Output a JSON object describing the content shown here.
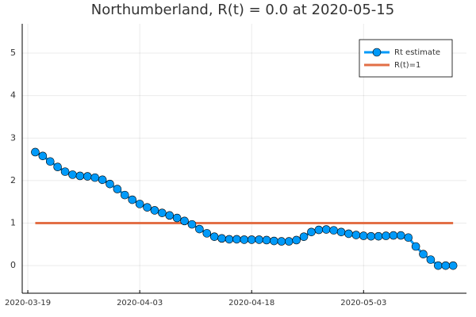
{
  "chart_data": {
    "type": "line",
    "title": "Northumberland, R(t) = 0.0 at 2020-05-15",
    "xlim": [
      "2020-03-18T06:00",
      "2020-05-16T19:00"
    ],
    "xticks": [
      "2020-03-19",
      "2020-04-03",
      "2020-04-18",
      "2020-05-03"
    ],
    "ylim": [
      -0.65,
      5.69
    ],
    "yticks": [
      0,
      1,
      2,
      3,
      4,
      5
    ],
    "grid": true,
    "legend": "top-right",
    "series": [
      {
        "name": "Rt estimate",
        "color": "#009af9",
        "markers": true,
        "x": [
          "2020-03-20",
          "2020-03-21",
          "2020-03-22",
          "2020-03-23",
          "2020-03-24",
          "2020-03-25",
          "2020-03-26",
          "2020-03-27",
          "2020-03-28",
          "2020-03-29",
          "2020-03-30",
          "2020-03-31",
          "2020-04-01",
          "2020-04-02",
          "2020-04-03",
          "2020-04-04",
          "2020-04-05",
          "2020-04-06",
          "2020-04-07",
          "2020-04-08",
          "2020-04-09",
          "2020-04-10",
          "2020-04-11",
          "2020-04-12",
          "2020-04-13",
          "2020-04-14",
          "2020-04-15",
          "2020-04-16",
          "2020-04-17",
          "2020-04-18",
          "2020-04-19",
          "2020-04-20",
          "2020-04-21",
          "2020-04-22",
          "2020-04-23",
          "2020-04-24",
          "2020-04-25",
          "2020-04-26",
          "2020-04-27",
          "2020-04-28",
          "2020-04-29",
          "2020-04-30",
          "2020-05-01",
          "2020-05-02",
          "2020-05-03",
          "2020-05-04",
          "2020-05-05",
          "2020-05-06",
          "2020-05-07",
          "2020-05-08",
          "2020-05-09",
          "2020-05-10",
          "2020-05-11",
          "2020-05-12",
          "2020-05-13",
          "2020-05-14",
          "2020-05-15"
        ],
        "values": [
          2.67,
          2.58,
          2.45,
          2.32,
          2.21,
          2.14,
          2.11,
          2.1,
          2.07,
          2.02,
          1.92,
          1.8,
          1.66,
          1.55,
          1.45,
          1.37,
          1.3,
          1.24,
          1.18,
          1.12,
          1.05,
          0.97,
          0.86,
          0.76,
          0.68,
          0.64,
          0.62,
          0.62,
          0.61,
          0.61,
          0.61,
          0.6,
          0.58,
          0.57,
          0.57,
          0.6,
          0.68,
          0.79,
          0.84,
          0.85,
          0.83,
          0.79,
          0.75,
          0.72,
          0.7,
          0.69,
          0.69,
          0.7,
          0.71,
          0.71,
          0.66,
          0.45,
          0.27,
          0.14,
          0.0,
          0.0,
          0.0
        ]
      },
      {
        "name": "R(t)=1",
        "color": "#e26f46",
        "markers": false,
        "x": [
          "2020-03-20",
          "2020-05-15"
        ],
        "values": [
          1,
          1
        ]
      }
    ]
  }
}
